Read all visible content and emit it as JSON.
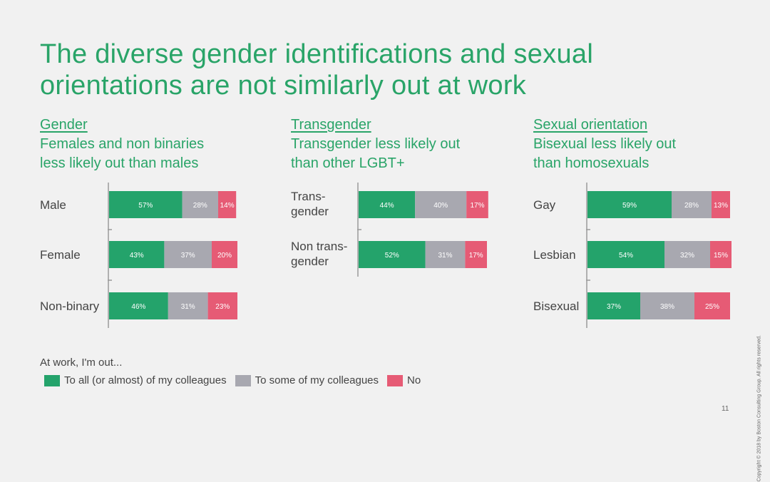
{
  "title": "The diverse gender identifications and sexual orientations are not similarly out at work",
  "colors": {
    "all": "#24a36b",
    "some": "#a8a8b0",
    "no": "#e65b75",
    "axis": "#9a9a9a"
  },
  "panels": [
    {
      "heading": "Gender",
      "subtitle": "Females and non binaries\nless likely out than males"
    },
    {
      "heading": "Transgender",
      "subtitle": "Transgender less likely out\nthan other LGBT+"
    },
    {
      "heading": "Sexual orientation",
      "subtitle": "Bisexual less likely out\nthan homosexuals"
    }
  ],
  "chart_data": [
    {
      "type": "bar",
      "orientation": "horizontal",
      "stacked": true,
      "categories": [
        "Male",
        "Female",
        "Non-binary"
      ],
      "series": [
        {
          "name": "To all (or almost) of my colleagues",
          "values": [
            57,
            43,
            46
          ],
          "labels": [
            "57%",
            "43%",
            "46%"
          ]
        },
        {
          "name": "To some of my colleagues",
          "values": [
            28,
            37,
            31
          ],
          "labels": [
            "28%",
            "37%",
            "31%"
          ]
        },
        {
          "name": "No",
          "values": [
            14,
            20,
            23
          ],
          "labels": [
            "14%",
            "20%",
            "23%"
          ]
        }
      ]
    },
    {
      "type": "bar",
      "orientation": "horizontal",
      "stacked": true,
      "categories": [
        [
          "Trans-",
          "gender"
        ],
        [
          "Non trans-",
          "gender"
        ]
      ],
      "series": [
        {
          "name": "To all (or almost) of my colleagues",
          "values": [
            44,
            52
          ],
          "labels": [
            "44%",
            "52%"
          ]
        },
        {
          "name": "To some of my colleagues",
          "values": [
            40,
            31
          ],
          "labels": [
            "40%",
            "31%"
          ]
        },
        {
          "name": "No",
          "values": [
            17,
            17
          ],
          "labels": [
            "17%",
            "17%"
          ]
        }
      ]
    },
    {
      "type": "bar",
      "orientation": "horizontal",
      "stacked": true,
      "categories": [
        "Gay",
        "Lesbian",
        "Bisexual"
      ],
      "series": [
        {
          "name": "To all (or almost) of my colleagues",
          "values": [
            59,
            54,
            37
          ],
          "labels": [
            "59%",
            "54%",
            "37%"
          ]
        },
        {
          "name": "To some of my colleagues",
          "values": [
            28,
            32,
            38
          ],
          "labels": [
            "28%",
            "32%",
            "38%"
          ]
        },
        {
          "name": "No",
          "values": [
            13,
            15,
            25
          ],
          "labels": [
            "13%",
            "15%",
            "25%"
          ]
        }
      ]
    }
  ],
  "legend": {
    "title": "At work, I'm out...",
    "items": [
      "To all (or almost) of my colleagues",
      "To some of my colleagues",
      "No"
    ]
  },
  "copyright": "Copyright © 2018 by Boston Consulting Group. All rights reserved.",
  "page_number": "11"
}
